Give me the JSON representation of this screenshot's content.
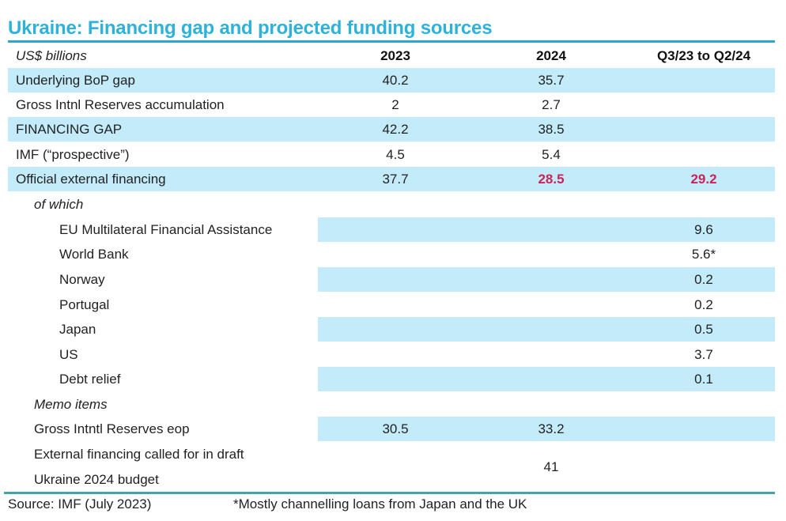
{
  "title": "Ukraine: Financing gap and projected funding sources",
  "header": {
    "unit": "US$ billions",
    "columns": [
      "2023",
      "2024",
      "Q3/23 to Q2/24"
    ]
  },
  "rows": [
    {
      "label": "Underlying BoP gap",
      "v2023": "40.2",
      "v2024": "35.7",
      "vq": ""
    },
    {
      "label": "Gross Intnl Reserves accumulation",
      "v2023": "2",
      "v2024": "2.7",
      "vq": ""
    },
    {
      "label": "FINANCING GAP",
      "v2023": "42.2",
      "v2024": "38.5",
      "vq": ""
    },
    {
      "label": "IMF (“prospective”)",
      "v2023": "4.5",
      "v2024": "5.4",
      "vq": ""
    },
    {
      "label": "Official external financing",
      "v2023": "37.7",
      "v2024": "28.5",
      "vq": "29.2"
    }
  ],
  "of_which_label": "of which",
  "sub_rows": [
    {
      "label": "EU Multilateral Financial Assistance",
      "vq": "9.6"
    },
    {
      "label": "World Bank",
      "vq": "5.6*"
    },
    {
      "label": "Norway",
      "vq": "0.2"
    },
    {
      "label": "Portugal",
      "vq": "0.2"
    },
    {
      "label": "Japan",
      "vq": "0.5"
    },
    {
      "label": "US",
      "vq": "3.7"
    },
    {
      "label": "Debt relief",
      "vq": "0.1"
    }
  ],
  "memo_label": "Memo items",
  "memo_rows": [
    {
      "label": "Gross Intntl Reserves eop",
      "v2023": "30.5",
      "v2024": "33.2"
    },
    {
      "label_line1": "External financing called for in draft",
      "label_line2": "Ukraine 2024 budget",
      "v2024": "41"
    }
  ],
  "footer": {
    "source": "Source: IMF (July 2023)",
    "note": "*Mostly channelling loans from Japan and the UK"
  },
  "colors": {
    "title": "#2eb2da",
    "shade": "#c3ebfa",
    "highlight": "#c8245a",
    "rule": "#2ea7c8"
  }
}
